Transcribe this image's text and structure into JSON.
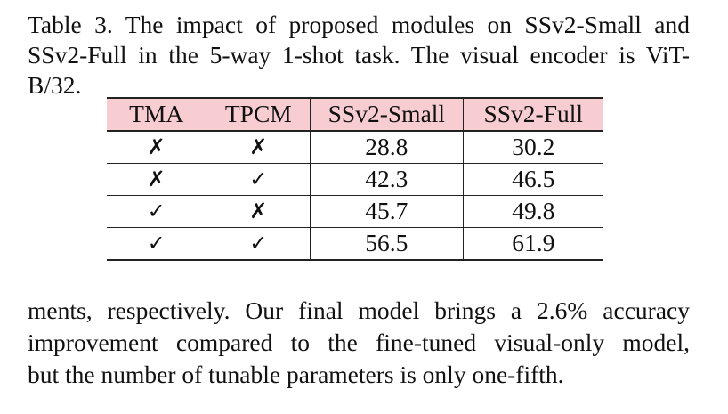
{
  "caption": {
    "line1": "Table 3. The impact of proposed modules on SSv2-Small and",
    "line2": "SSv2-Full in the 5-way 1-shot task.  The visual encoder is ViT-",
    "line3": "B/32."
  },
  "table": {
    "headers": [
      "TMA",
      "TPCM",
      "SSv2-Small",
      "SSv2-Full"
    ],
    "rows": [
      {
        "tma": "✗",
        "tpcm": "✗",
        "ssv2_small": "28.8",
        "ssv2_full": "30.2"
      },
      {
        "tma": "✗",
        "tpcm": "✓",
        "ssv2_small": "42.3",
        "ssv2_full": "46.5"
      },
      {
        "tma": "✓",
        "tpcm": "✗",
        "ssv2_small": "45.7",
        "ssv2_full": "49.8"
      },
      {
        "tma": "✓",
        "tpcm": "✓",
        "ssv2_small": "56.5",
        "ssv2_full": "61.9"
      }
    ],
    "header_bg_color": "#f8cdd1"
  },
  "body": {
    "line1": "ments, respectively. Our final model brings a 2.6% accuracy",
    "line2": "improvement compared to the fine-tuned visual-only model,",
    "line3": "but the number of tunable parameters is only one-fifth."
  }
}
